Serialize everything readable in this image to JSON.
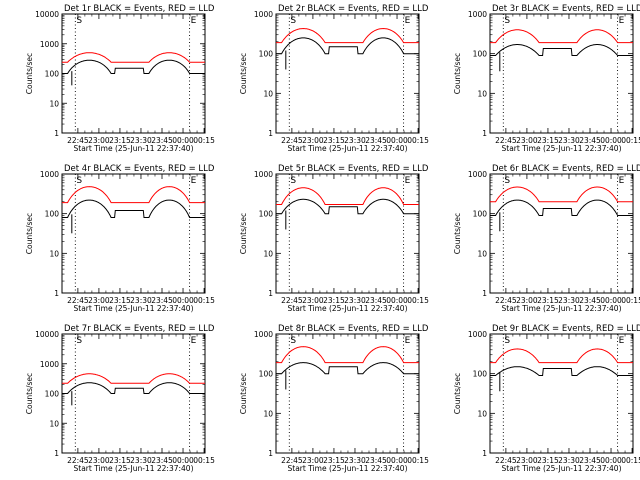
{
  "chart_data": {
    "type": "line",
    "panels": [
      {
        "title": "Det 1r BLACK = Events, RED = LLD",
        "ylim": [
          1,
          10000
        ],
        "yticks": [
          "1",
          "10",
          "100",
          "1000",
          "10000"
        ],
        "events_dip": 100,
        "lld_dip": 240,
        "events_peak": 280,
        "lld_peak": 500
      },
      {
        "title": "Det 2r BLACK = Events, RED = LLD",
        "ylim": [
          1,
          1000
        ],
        "yticks": [
          "1",
          "10",
          "100",
          "1000"
        ],
        "events_dip": 100,
        "lld_dip": 190,
        "events_peak": 250,
        "lld_peak": 430
      },
      {
        "title": "Det 3r BLACK = Events, RED = LLD",
        "ylim": [
          1,
          1000
        ],
        "yticks": [
          "1",
          "10",
          "100",
          "1000"
        ],
        "events_dip": 90,
        "lld_dip": 190,
        "events_peak": 170,
        "lld_peak": 400
      },
      {
        "title": "Det 4r BLACK = Events, RED = LLD",
        "ylim": [
          1,
          1000
        ],
        "yticks": [
          "1",
          "10",
          "100",
          "1000"
        ],
        "events_dip": 80,
        "lld_dip": 190,
        "events_peak": 220,
        "lld_peak": 480
      },
      {
        "title": "Det 5r BLACK = Events, RED = LLD",
        "ylim": [
          1,
          1000
        ],
        "yticks": [
          "1",
          "10",
          "100",
          "1000"
        ],
        "events_dip": 100,
        "lld_dip": 170,
        "events_peak": 230,
        "lld_peak": 450
      },
      {
        "title": "Det 6r BLACK = Events, RED = LLD",
        "ylim": [
          1,
          1000
        ],
        "yticks": [
          "1",
          "10",
          "100",
          "1000"
        ],
        "events_dip": 90,
        "lld_dip": 200,
        "events_peak": 220,
        "lld_peak": 470
      },
      {
        "title": "Det 7r BLACK = Events, RED = LLD",
        "ylim": [
          1,
          10000
        ],
        "yticks": [
          "1",
          "10",
          "100",
          "1000",
          "10000"
        ],
        "events_dip": 100,
        "lld_dip": 220,
        "events_peak": 230,
        "lld_peak": 460
      },
      {
        "title": "Det 8r BLACK = Events, RED = LLD",
        "ylim": [
          1,
          1000
        ],
        "yticks": [
          "1",
          "10",
          "100",
          "1000"
        ],
        "events_dip": 100,
        "lld_dip": 190,
        "events_peak": 190,
        "lld_peak": 480
      },
      {
        "title": "Det 9r BLACK = Events, RED = LLD",
        "ylim": [
          1,
          1000
        ],
        "yticks": [
          "1",
          "10",
          "100",
          "1000"
        ],
        "events_dip": 90,
        "lld_dip": 190,
        "events_peak": 150,
        "lld_peak": 420
      }
    ],
    "xlabel": "Start Time (25-Jun-11 22:37:40)",
    "ylabel": "Counts/sec",
    "xticks": [
      "22:45",
      "23:00",
      "23:15",
      "23:30",
      "23:45",
      "00:00",
      "00:15"
    ],
    "xlim_minutes": [
      -4,
      98
    ],
    "vline_labels": [
      "S",
      "E"
    ],
    "vlines_minutes": [
      5.5,
      87
    ],
    "series": [
      {
        "name": "BLACK = Events",
        "color": "#000000"
      },
      {
        "name": "RED = LLD",
        "color": "#ff0000"
      }
    ],
    "y_scale": "log"
  }
}
